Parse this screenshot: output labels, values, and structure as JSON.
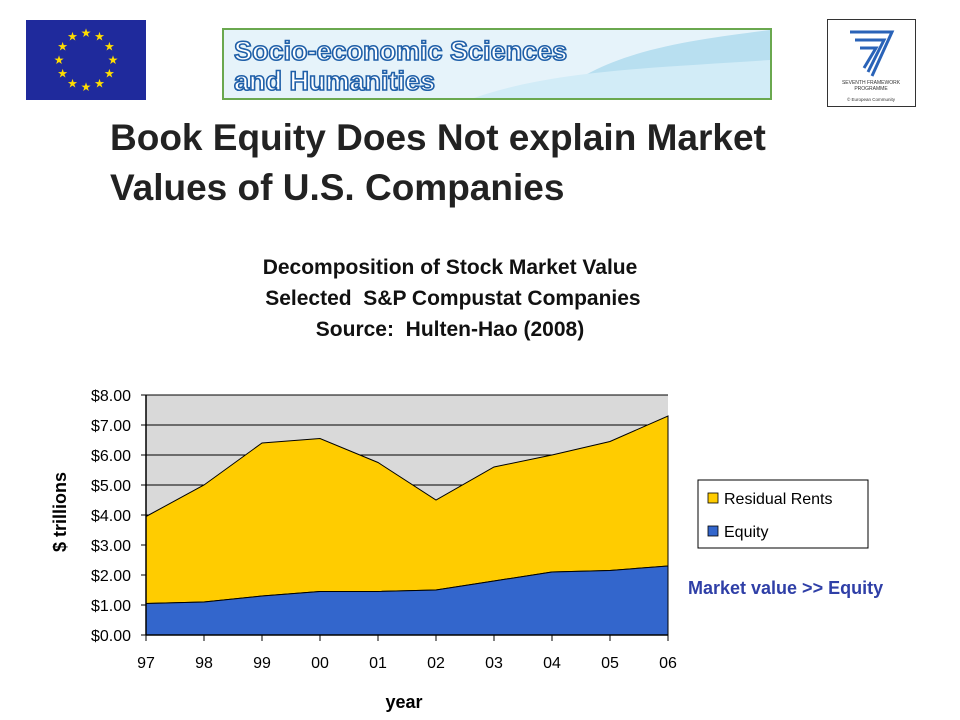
{
  "slide": {
    "title_line1": "Book Equity Does Not explain Market",
    "title_line2": "Values of U.S. Companies",
    "annotation": "Market value >> Equity"
  },
  "logos": {
    "banner_line1": "Socio-economic Sciences",
    "banner_line2": "and Humanities",
    "fp7_text1": "SEVENTH FRAMEWORK",
    "fp7_text2": "PROGRAMME",
    "fp7_text3": "© European Community"
  },
  "colors": {
    "residual": "#ffcc00",
    "equity": "#3366cc",
    "plot_bg": "#d9d9d9",
    "eu_blue": "#1f2a9c",
    "eu_star": "#ffdd00",
    "annotation": "#2f3fa7"
  },
  "chart_data": {
    "type": "area",
    "stacked": true,
    "title_lines": [
      "Decomposition of Stock Market Value",
      " Selected  S&P Compustat Companies",
      "Source:  Hulten-Hao (2008)"
    ],
    "xlabel": "year",
    "ylabel": "$ trillions",
    "categories": [
      "97",
      "98",
      "99",
      "00",
      "01",
      "02",
      "03",
      "04",
      "05",
      "06"
    ],
    "y_ticks": [
      "$0.00",
      "$1.00",
      "$2.00",
      "$3.00",
      "$4.00",
      "$5.00",
      "$6.00",
      "$7.00",
      "$8.00"
    ],
    "ylim": [
      0,
      8
    ],
    "grid": true,
    "legend_position": "right",
    "series": [
      {
        "name": "Residual Rents",
        "values": [
          2.9,
          3.9,
          5.1,
          5.1,
          4.3,
          3.0,
          3.8,
          3.9,
          4.3,
          5.0
        ]
      },
      {
        "name": "Equity",
        "values": [
          1.05,
          1.1,
          1.3,
          1.45,
          1.45,
          1.5,
          1.8,
          2.1,
          2.15,
          2.3
        ]
      }
    ]
  }
}
